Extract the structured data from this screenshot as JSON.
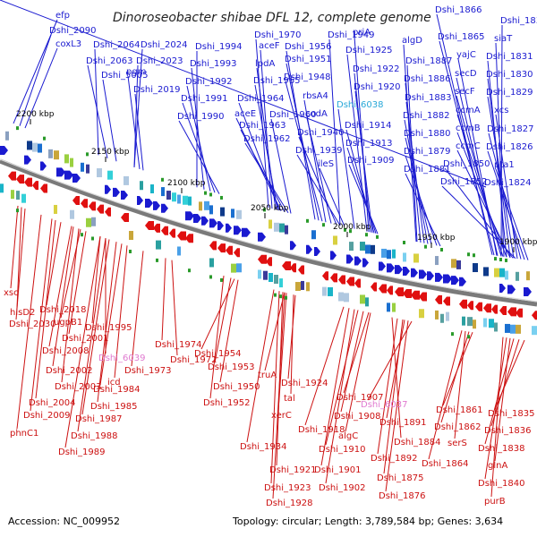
{
  "title": "Dinoroseobacter shibae DFL 12, complete genome",
  "accession": "Accession: NC_009952",
  "summary": "Topology: circular; Length: 3,789,584 bp; Genes: 3,634",
  "colors": {
    "top_label": "#1a1ad0",
    "top_label_highlight": "#29a8d8",
    "bottom_label": "#cc1111",
    "bottom_label_highlight": "#e07ad0",
    "forward_arrow": "#1a1ad0",
    "reverse_arrow": "#e01010",
    "backbone": "#888888"
  },
  "kbp_ticks": [
    {
      "label": "2200 kbp"
    },
    {
      "label": "2150 kbp"
    },
    {
      "label": "2100 kbp"
    },
    {
      "label": "2050 kbp"
    },
    {
      "label": "2000 kbp"
    },
    {
      "label": "1950 kbp"
    },
    {
      "label": "1900 kbp"
    }
  ],
  "top_labels": [
    {
      "text": "efp"
    },
    {
      "text": "Dshi_2090"
    },
    {
      "text": "coxL3"
    },
    {
      "text": "Dshi_2064"
    },
    {
      "text": "Dshi_2024"
    },
    {
      "text": "Dshi_2063"
    },
    {
      "text": "Dshi_2023"
    },
    {
      "text": "pgm"
    },
    {
      "text": "Dshi_5005"
    },
    {
      "text": "Dshi_2019"
    },
    {
      "text": "Dshi_1994"
    },
    {
      "text": "Dshi_1993"
    },
    {
      "text": "Dshi_1992"
    },
    {
      "text": "Dshi_1991"
    },
    {
      "text": "Dshi_1990"
    },
    {
      "text": "Dshi_1970"
    },
    {
      "text": "aceF"
    },
    {
      "text": "lpdA"
    },
    {
      "text": "Dshi_1965"
    },
    {
      "text": "Dshi_1964"
    },
    {
      "text": "aceE"
    },
    {
      "text": "Dshi_1963"
    },
    {
      "text": "Dshi_1962"
    },
    {
      "text": "Dshi_1956"
    },
    {
      "text": "Dshi_1951"
    },
    {
      "text": "Dshi_1948"
    },
    {
      "text": "Dshi_1960"
    },
    {
      "text": "Dshi_1949"
    },
    {
      "text": "rbsA4"
    },
    {
      "text": "codA"
    },
    {
      "text": "Dshi_1940"
    },
    {
      "text": "Dshi_1939"
    },
    {
      "text": "ileS"
    },
    {
      "text": "priA"
    },
    {
      "text": "Dshi_1925"
    },
    {
      "text": "Dshi_1922"
    },
    {
      "text": "Dshi_1920"
    },
    {
      "text": "Dshi_6038",
      "highlight": true
    },
    {
      "text": "Dshi_1914"
    },
    {
      "text": "Dshi_1913"
    },
    {
      "text": "Dshi_1909"
    },
    {
      "text": "algD"
    },
    {
      "text": "Dshi_1887"
    },
    {
      "text": "Dshi_1886"
    },
    {
      "text": "Dshi_1883"
    },
    {
      "text": "Dshi_1882"
    },
    {
      "text": "Dshi_1880"
    },
    {
      "text": "Dshi_1879"
    },
    {
      "text": "Dshi_1881"
    },
    {
      "text": "Dshi_1866"
    },
    {
      "text": "Dshi_1865"
    },
    {
      "text": "yajC"
    },
    {
      "text": "secD"
    },
    {
      "text": "secF"
    },
    {
      "text": "ccmA"
    },
    {
      "text": "ccmB"
    },
    {
      "text": "ccmC"
    },
    {
      "text": "Dshi_1850"
    },
    {
      "text": "Dshi_1852"
    },
    {
      "text": "Dshi_1833"
    },
    {
      "text": "siaT"
    },
    {
      "text": "Dshi_1831"
    },
    {
      "text": "Dshi_1830"
    },
    {
      "text": "Dshi_1829"
    },
    {
      "text": "xcs"
    },
    {
      "text": "Dshi_1827"
    },
    {
      "text": "Dshi_1826"
    },
    {
      "text": "pta1"
    },
    {
      "text": "Dshi_1824"
    }
  ],
  "bottom_labels": [
    {
      "text": "xsc"
    },
    {
      "text": "hisD2"
    },
    {
      "text": "Dshi_2030"
    },
    {
      "text": "Dshi_2018"
    },
    {
      "text": "ugpB1"
    },
    {
      "text": "Dshi_1995"
    },
    {
      "text": "Dshi_2001"
    },
    {
      "text": "Dshi_2008"
    },
    {
      "text": "Dshi_2002"
    },
    {
      "text": "Dshi_2003"
    },
    {
      "text": "Dshi_2004"
    },
    {
      "text": "Dshi_2009"
    },
    {
      "text": "phnC1"
    },
    {
      "text": "Dshi_6039",
      "highlight": true
    },
    {
      "text": "Dshi_1974"
    },
    {
      "text": "Dshi_1972"
    },
    {
      "text": "Dshi_1973"
    },
    {
      "text": "icd"
    },
    {
      "text": "Dshi_1984"
    },
    {
      "text": "Dshi_1985"
    },
    {
      "text": "Dshi_1987"
    },
    {
      "text": "Dshi_1988"
    },
    {
      "text": "Dshi_1989"
    },
    {
      "text": "Dshi_1954"
    },
    {
      "text": "Dshi_1953"
    },
    {
      "text": "Dshi_1950"
    },
    {
      "text": "Dshi_1952"
    },
    {
      "text": "truA"
    },
    {
      "text": "Dshi_1924"
    },
    {
      "text": "tal"
    },
    {
      "text": "xerC"
    },
    {
      "text": "Dshi_1934"
    },
    {
      "text": "Dshi_1921"
    },
    {
      "text": "Dshi_1923"
    },
    {
      "text": "Dshi_1928"
    },
    {
      "text": "Dshi_1907"
    },
    {
      "text": "Dshi_1908"
    },
    {
      "text": "Dshi_1918"
    },
    {
      "text": "Dshi_1910"
    },
    {
      "text": "algC"
    },
    {
      "text": "Dshi_1901"
    },
    {
      "text": "Dshi_1902"
    },
    {
      "text": "Dshi_6037",
      "highlight": true
    },
    {
      "text": "Dshi_1891"
    },
    {
      "text": "Dshi_1884"
    },
    {
      "text": "Dshi_1892"
    },
    {
      "text": "Dshi_1875"
    },
    {
      "text": "Dshi_1876"
    },
    {
      "text": "Dshi_1861"
    },
    {
      "text": "Dshi_1862"
    },
    {
      "text": "serS"
    },
    {
      "text": "Dshi_1864"
    },
    {
      "text": "Dshi_1835"
    },
    {
      "text": "Dshi_1836"
    },
    {
      "text": "Dshi_1838"
    },
    {
      "text": "glnA"
    },
    {
      "text": "Dshi_1840"
    },
    {
      "text": "purB"
    }
  ]
}
